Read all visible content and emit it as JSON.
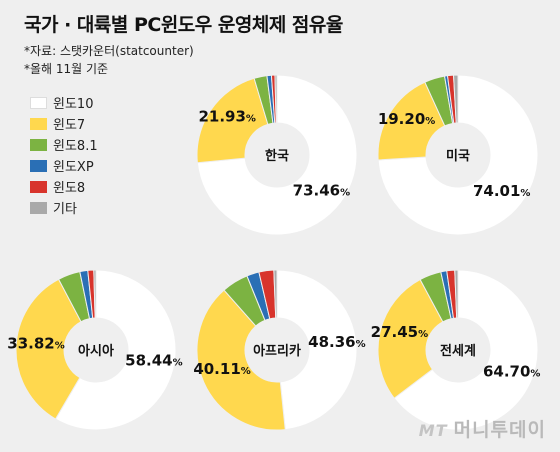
{
  "header": {
    "title": "국가 · 대륙별 PC윈도우 운영체제 점유율",
    "source": "*자료: 스탯카운터(statcounter)",
    "date_note": "*올해 11월 기준"
  },
  "legend": [
    {
      "label": "윈도10",
      "color": "#ffffff"
    },
    {
      "label": "윈도7",
      "color": "#ffd84e"
    },
    {
      "label": "윈도8.1",
      "color": "#7cb342"
    },
    {
      "label": "윈도XP",
      "color": "#2a6fb5"
    },
    {
      "label": "윈도8",
      "color": "#d8342c"
    },
    {
      "label": "기타",
      "color": "#a9a9a9"
    }
  ],
  "watermark": {
    "logo": "MT",
    "brand": "머니투데이"
  },
  "chart_data": [
    {
      "type": "pie",
      "title": "한국",
      "categories": [
        "윈도10",
        "윈도7",
        "윈도8.1",
        "윈도XP",
        "윈도8",
        "기타"
      ],
      "values": [
        73.46,
        21.93,
        2.6,
        0.9,
        0.7,
        0.41
      ],
      "labels": {
        "윈도10": "73.46",
        "윈도7": "21.93"
      }
    },
    {
      "type": "pie",
      "title": "미국",
      "categories": [
        "윈도10",
        "윈도7",
        "윈도8.1",
        "윈도XP",
        "윈도8",
        "기타"
      ],
      "values": [
        74.01,
        19.2,
        4.1,
        0.6,
        1.2,
        0.89
      ],
      "labels": {
        "윈도10": "74.01",
        "윈도7": "19.20"
      }
    },
    {
      "type": "pie",
      "title": "아시아",
      "categories": [
        "윈도10",
        "윈도7",
        "윈도8.1",
        "윈도XP",
        "윈도8",
        "기타"
      ],
      "values": [
        58.44,
        33.82,
        4.5,
        1.6,
        1.2,
        0.44
      ],
      "labels": {
        "윈도10": "58.44",
        "윈도7": "33.82"
      }
    },
    {
      "type": "pie",
      "title": "아프리카",
      "categories": [
        "윈도10",
        "윈도7",
        "윈도8.1",
        "윈도XP",
        "윈도8",
        "기타"
      ],
      "values": [
        48.36,
        40.11,
        5.4,
        2.5,
        3.0,
        0.63
      ],
      "labels": {
        "윈도10": "48.36",
        "윈도7": "40.11"
      }
    },
    {
      "type": "pie",
      "title": "전세계",
      "categories": [
        "윈도10",
        "윈도7",
        "윈도8.1",
        "윈도XP",
        "윈도8",
        "기타"
      ],
      "values": [
        64.7,
        27.45,
        4.4,
        1.2,
        1.6,
        0.65
      ],
      "labels": {
        "윈도10": "64.70",
        "윈도7": "27.45"
      }
    }
  ]
}
